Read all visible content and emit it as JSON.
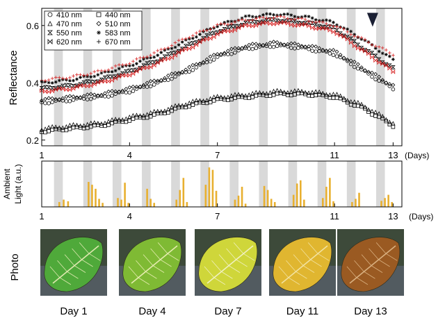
{
  "chart_data": [
    {
      "type": "scatter",
      "ylabel": "Reflectance",
      "xunit": "(Days)",
      "xlim": [
        1,
        13.3
      ],
      "ylim": [
        0.18,
        0.66
      ],
      "xticks": [
        "1",
        "4",
        "7",
        "11",
        "13"
      ],
      "yticks": [
        "0.2",
        "0.4",
        "0.6"
      ],
      "night_shading": true,
      "annotation": {
        "type": "arrow-down",
        "x": 12.3,
        "y": 0.62
      },
      "legend_position": "top-left",
      "series": [
        {
          "name": "410 nm",
          "marker": "circle",
          "color": "#000000",
          "x": [
            1,
            2,
            3,
            4,
            5,
            6,
            7,
            8,
            9,
            10,
            11,
            12,
            13
          ],
          "y": [
            0.33,
            0.34,
            0.35,
            0.37,
            0.4,
            0.44,
            0.49,
            0.52,
            0.53,
            0.52,
            0.5,
            0.44,
            0.38
          ]
        },
        {
          "name": "440 nm",
          "marker": "square",
          "color": "#000000",
          "x": [
            1,
            2,
            3,
            4,
            5,
            6,
            7,
            8,
            9,
            10,
            11,
            12,
            13
          ],
          "y": [
            0.23,
            0.24,
            0.25,
            0.27,
            0.29,
            0.32,
            0.34,
            0.35,
            0.36,
            0.36,
            0.35,
            0.31,
            0.25
          ]
        },
        {
          "name": "470 nm",
          "marker": "triangle",
          "color": "#000000",
          "x": [
            1,
            2,
            3,
            4,
            5,
            6,
            7,
            8,
            9,
            10,
            11,
            12,
            13
          ],
          "y": [
            0.24,
            0.25,
            0.26,
            0.28,
            0.3,
            0.33,
            0.35,
            0.36,
            0.37,
            0.37,
            0.36,
            0.32,
            0.26
          ]
        },
        {
          "name": "510 nm",
          "marker": "diamond",
          "color": "#000000",
          "x": [
            1,
            2,
            3,
            4,
            5,
            6,
            7,
            8,
            9,
            10,
            11,
            12,
            13
          ],
          "y": [
            0.34,
            0.35,
            0.36,
            0.38,
            0.41,
            0.45,
            0.5,
            0.53,
            0.54,
            0.53,
            0.51,
            0.45,
            0.39
          ]
        },
        {
          "name": "550 nm",
          "marker": "hourglass",
          "color": "#000000",
          "x": [
            1,
            2,
            3,
            4,
            5,
            6,
            7,
            8,
            9,
            10,
            11,
            12,
            13
          ],
          "y": [
            0.38,
            0.39,
            0.41,
            0.44,
            0.48,
            0.53,
            0.58,
            0.61,
            0.62,
            0.61,
            0.59,
            0.52,
            0.45
          ]
        },
        {
          "name": "583 nm",
          "marker": "asterisk",
          "color": "#000000",
          "x": [
            1,
            2,
            3,
            4,
            5,
            6,
            7,
            8,
            9,
            10,
            11,
            12,
            13
          ],
          "y": [
            0.4,
            0.41,
            0.43,
            0.46,
            0.5,
            0.55,
            0.6,
            0.63,
            0.64,
            0.63,
            0.61,
            0.55,
            0.48
          ]
        },
        {
          "name": "620 nm",
          "marker": "bowtie",
          "color": "#d62020",
          "x": [
            1,
            2,
            3,
            4,
            5,
            6,
            7,
            8,
            9,
            10,
            11,
            12,
            13
          ],
          "y": [
            0.37,
            0.38,
            0.4,
            0.43,
            0.47,
            0.52,
            0.57,
            0.6,
            0.61,
            0.6,
            0.58,
            0.51,
            0.44
          ]
        },
        {
          "name": "670 nm",
          "marker": "plus",
          "color": "#d62020",
          "x": [
            1,
            2,
            3,
            4,
            5,
            6,
            7,
            8,
            9,
            10,
            11,
            12,
            13
          ],
          "y": [
            0.41,
            0.42,
            0.44,
            0.47,
            0.51,
            0.56,
            0.6,
            0.62,
            0.63,
            0.62,
            0.6,
            0.55,
            0.5
          ]
        }
      ]
    },
    {
      "type": "bar",
      "ylabel": "Ambient Light (a.u.)",
      "xunit": "(Days)",
      "xlim": [
        1,
        13.3
      ],
      "xticks": [
        "1",
        "4",
        "7",
        "11",
        "13"
      ],
      "bar_color": "#e8b030",
      "night_shading": true,
      "groups": [
        {
          "x": [
            1.6,
            1.75,
            1.9
          ],
          "values": [
            0.12,
            0.18,
            0.14
          ]
        },
        {
          "x": [
            2.6,
            2.72,
            2.84,
            2.96,
            3.08
          ],
          "values": [
            0.62,
            0.55,
            0.45,
            0.2,
            0.1
          ]
        },
        {
          "x": [
            3.6,
            3.72,
            3.84,
            3.96
          ],
          "values": [
            0.22,
            0.18,
            0.6,
            0.1
          ]
        },
        {
          "x": [
            4.6,
            4.72,
            4.84
          ],
          "values": [
            0.45,
            0.2,
            0.1
          ]
        },
        {
          "x": [
            5.6,
            5.72,
            5.84,
            5.96
          ],
          "values": [
            0.18,
            0.42,
            0.72,
            0.12
          ]
        },
        {
          "x": [
            6.6,
            6.72,
            6.84,
            6.96
          ],
          "values": [
            0.55,
            0.98,
            0.92,
            0.4
          ]
        },
        {
          "x": [
            7.6,
            7.72,
            7.84,
            7.96
          ],
          "values": [
            0.18,
            0.28,
            0.5,
            0.08
          ]
        },
        {
          "x": [
            8.6,
            8.72,
            8.84,
            8.96
          ],
          "values": [
            0.52,
            0.42,
            0.2,
            0.12
          ]
        },
        {
          "x": [
            9.6,
            9.72,
            9.84,
            9.96
          ],
          "values": [
            0.3,
            0.58,
            0.66,
            0.18
          ]
        },
        {
          "x": [
            10.6,
            10.72,
            10.84,
            10.96
          ],
          "values": [
            0.22,
            0.5,
            0.72,
            0.14
          ]
        },
        {
          "x": [
            11.6,
            11.72,
            11.84
          ],
          "values": [
            0.12,
            0.2,
            0.35
          ]
        },
        {
          "x": [
            12.6,
            12.72,
            12.84,
            12.96
          ],
          "values": [
            0.15,
            0.22,
            0.3,
            0.12
          ]
        }
      ]
    }
  ],
  "photo_section": {
    "label": "Photo",
    "photos": [
      {
        "day_label": "Day 1",
        "leaf_color": "#4fa93a",
        "vein_color": "#dfe8b0"
      },
      {
        "day_label": "Day 4",
        "leaf_color": "#7fba34",
        "vein_color": "#e6ecb0"
      },
      {
        "day_label": "Day 7",
        "leaf_color": "#cfd63a",
        "vein_color": "#f0f0c0"
      },
      {
        "day_label": "Day 11",
        "leaf_color": "#e0b630",
        "vein_color": "#f2e2a0"
      },
      {
        "day_label": "Day 13",
        "leaf_color": "#9a5a22",
        "vein_color": "#d9b080"
      }
    ]
  }
}
